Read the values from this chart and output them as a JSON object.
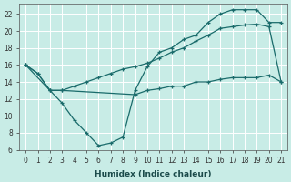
{
  "xlabel": "Humidex (Indice chaleur)",
  "ylabel": "",
  "xlim": [
    -0.5,
    21.5
  ],
  "ylim": [
    6,
    23.2
  ],
  "yticks": [
    6,
    8,
    10,
    12,
    14,
    16,
    18,
    20,
    22
  ],
  "xticks": [
    0,
    1,
    2,
    3,
    4,
    5,
    6,
    7,
    8,
    9,
    10,
    11,
    12,
    13,
    14,
    15,
    16,
    17,
    18,
    19,
    20,
    21
  ],
  "bg_color": "#c8ece6",
  "line_color": "#1a6b6b",
  "grid_color": "#ffffff",
  "line1_x": [
    0,
    1,
    2,
    3,
    4,
    5,
    6,
    7,
    8,
    9,
    10,
    11,
    12,
    13,
    14,
    15,
    16,
    17,
    18,
    19,
    20,
    21
  ],
  "line1_y": [
    16.0,
    15.0,
    13.0,
    11.5,
    9.5,
    8.0,
    6.5,
    6.8,
    7.5,
    13.0,
    15.8,
    17.5,
    18.0,
    19.0,
    19.5,
    21.0,
    22.0,
    22.5,
    22.5,
    22.5,
    21.0,
    21.0
  ],
  "line2_x": [
    0,
    1,
    2,
    3,
    4,
    5,
    6,
    7,
    8,
    9,
    10,
    11,
    12,
    13,
    14,
    15,
    16,
    17,
    18,
    19,
    20,
    21
  ],
  "line2_y": [
    16.0,
    15.0,
    13.0,
    13.0,
    13.5,
    14.0,
    14.5,
    15.0,
    15.5,
    15.8,
    16.2,
    16.8,
    17.5,
    18.0,
    18.8,
    19.5,
    20.3,
    20.5,
    20.7,
    20.8,
    20.5,
    14.0
  ],
  "line3_x": [
    0,
    2,
    3,
    9,
    10,
    11,
    12,
    13,
    14,
    15,
    16,
    17,
    18,
    19,
    20,
    21
  ],
  "line3_y": [
    16.0,
    13.0,
    13.0,
    12.5,
    13.0,
    13.2,
    13.5,
    13.5,
    14.0,
    14.0,
    14.3,
    14.5,
    14.5,
    14.5,
    14.8,
    14.0
  ]
}
